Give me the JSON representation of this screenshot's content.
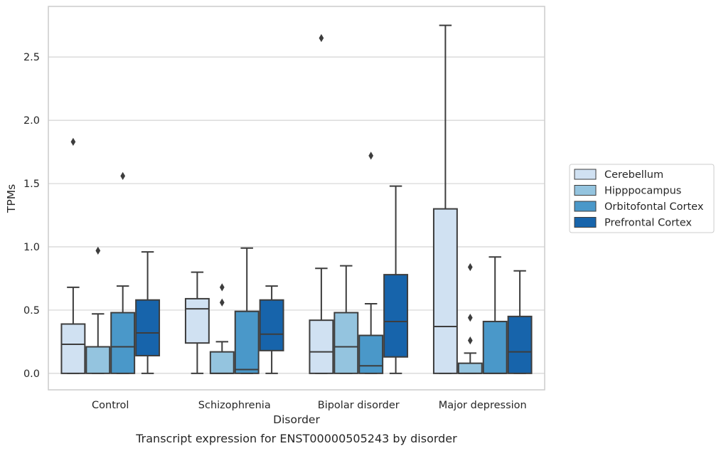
{
  "chart_data": {
    "type": "box",
    "caption": "Transcript expression for ENST00000505243 by disorder",
    "xlabel": "Disorder",
    "ylabel": "TPMs",
    "ylim": [
      -0.13,
      2.9
    ],
    "yticks": [
      0.0,
      0.5,
      1.0,
      1.5,
      2.0,
      2.5
    ],
    "ytick_labels": [
      "0.0",
      "0.5",
      "1.0",
      "1.5",
      "2.0",
      "2.5"
    ],
    "grid": "horizontal",
    "legend_position": "right",
    "categories": [
      "Control",
      "Schizophrenia",
      "Bipolar disorder",
      "Major depression"
    ],
    "series": [
      {
        "name": "Cerebellum",
        "color": "#d0e1f2",
        "boxes": [
          {
            "whisker_low": 0.0,
            "q1": 0.0,
            "median": 0.23,
            "q3": 0.39,
            "whisker_high": 0.68,
            "outliers": [
              1.83
            ]
          },
          {
            "whisker_low": 0.0,
            "q1": 0.24,
            "median": 0.51,
            "q3": 0.59,
            "whisker_high": 0.8,
            "outliers": []
          },
          {
            "whisker_low": 0.0,
            "q1": 0.0,
            "median": 0.17,
            "q3": 0.42,
            "whisker_high": 0.83,
            "outliers": [
              2.65
            ]
          },
          {
            "whisker_low": 0.0,
            "q1": 0.0,
            "median": 0.37,
            "q3": 1.3,
            "whisker_high": 2.75,
            "outliers": []
          }
        ]
      },
      {
        "name": "Hipppocampus",
        "color": "#94c4df",
        "boxes": [
          {
            "whisker_low": 0.0,
            "q1": 0.0,
            "median": 0.21,
            "q3": 0.21,
            "whisker_high": 0.47,
            "outliers": [
              0.97
            ]
          },
          {
            "whisker_low": 0.0,
            "q1": 0.0,
            "median": 0.0,
            "q3": 0.17,
            "whisker_high": 0.25,
            "outliers": [
              0.56,
              0.68
            ]
          },
          {
            "whisker_low": 0.0,
            "q1": 0.0,
            "median": 0.21,
            "q3": 0.48,
            "whisker_high": 0.85,
            "outliers": []
          },
          {
            "whisker_low": 0.0,
            "q1": 0.0,
            "median": 0.0,
            "q3": 0.08,
            "whisker_high": 0.16,
            "outliers": [
              0.26,
              0.44,
              0.84
            ]
          }
        ]
      },
      {
        "name": "Orbitofontal Cortex",
        "color": "#4a98c9",
        "boxes": [
          {
            "whisker_low": 0.0,
            "q1": 0.0,
            "median": 0.21,
            "q3": 0.48,
            "whisker_high": 0.69,
            "outliers": [
              1.56
            ]
          },
          {
            "whisker_low": 0.0,
            "q1": 0.0,
            "median": 0.03,
            "q3": 0.49,
            "whisker_high": 0.99,
            "outliers": []
          },
          {
            "whisker_low": 0.0,
            "q1": 0.0,
            "median": 0.06,
            "q3": 0.3,
            "whisker_high": 0.55,
            "outliers": [
              1.72
            ]
          },
          {
            "whisker_low": 0.0,
            "q1": 0.0,
            "median": 0.0,
            "q3": 0.41,
            "whisker_high": 0.92,
            "outliers": []
          }
        ]
      },
      {
        "name": "Prefrontal Cortex",
        "color": "#1764ab",
        "boxes": [
          {
            "whisker_low": 0.0,
            "q1": 0.14,
            "median": 0.32,
            "q3": 0.58,
            "whisker_high": 0.96,
            "outliers": []
          },
          {
            "whisker_low": 0.0,
            "q1": 0.18,
            "median": 0.31,
            "q3": 0.58,
            "whisker_high": 0.69,
            "outliers": []
          },
          {
            "whisker_low": 0.0,
            "q1": 0.13,
            "median": 0.41,
            "q3": 0.78,
            "whisker_high": 1.48,
            "outliers": []
          },
          {
            "whisker_low": 0.0,
            "q1": 0.0,
            "median": 0.17,
            "q3": 0.45,
            "whisker_high": 0.81,
            "outliers": []
          }
        ]
      }
    ]
  }
}
